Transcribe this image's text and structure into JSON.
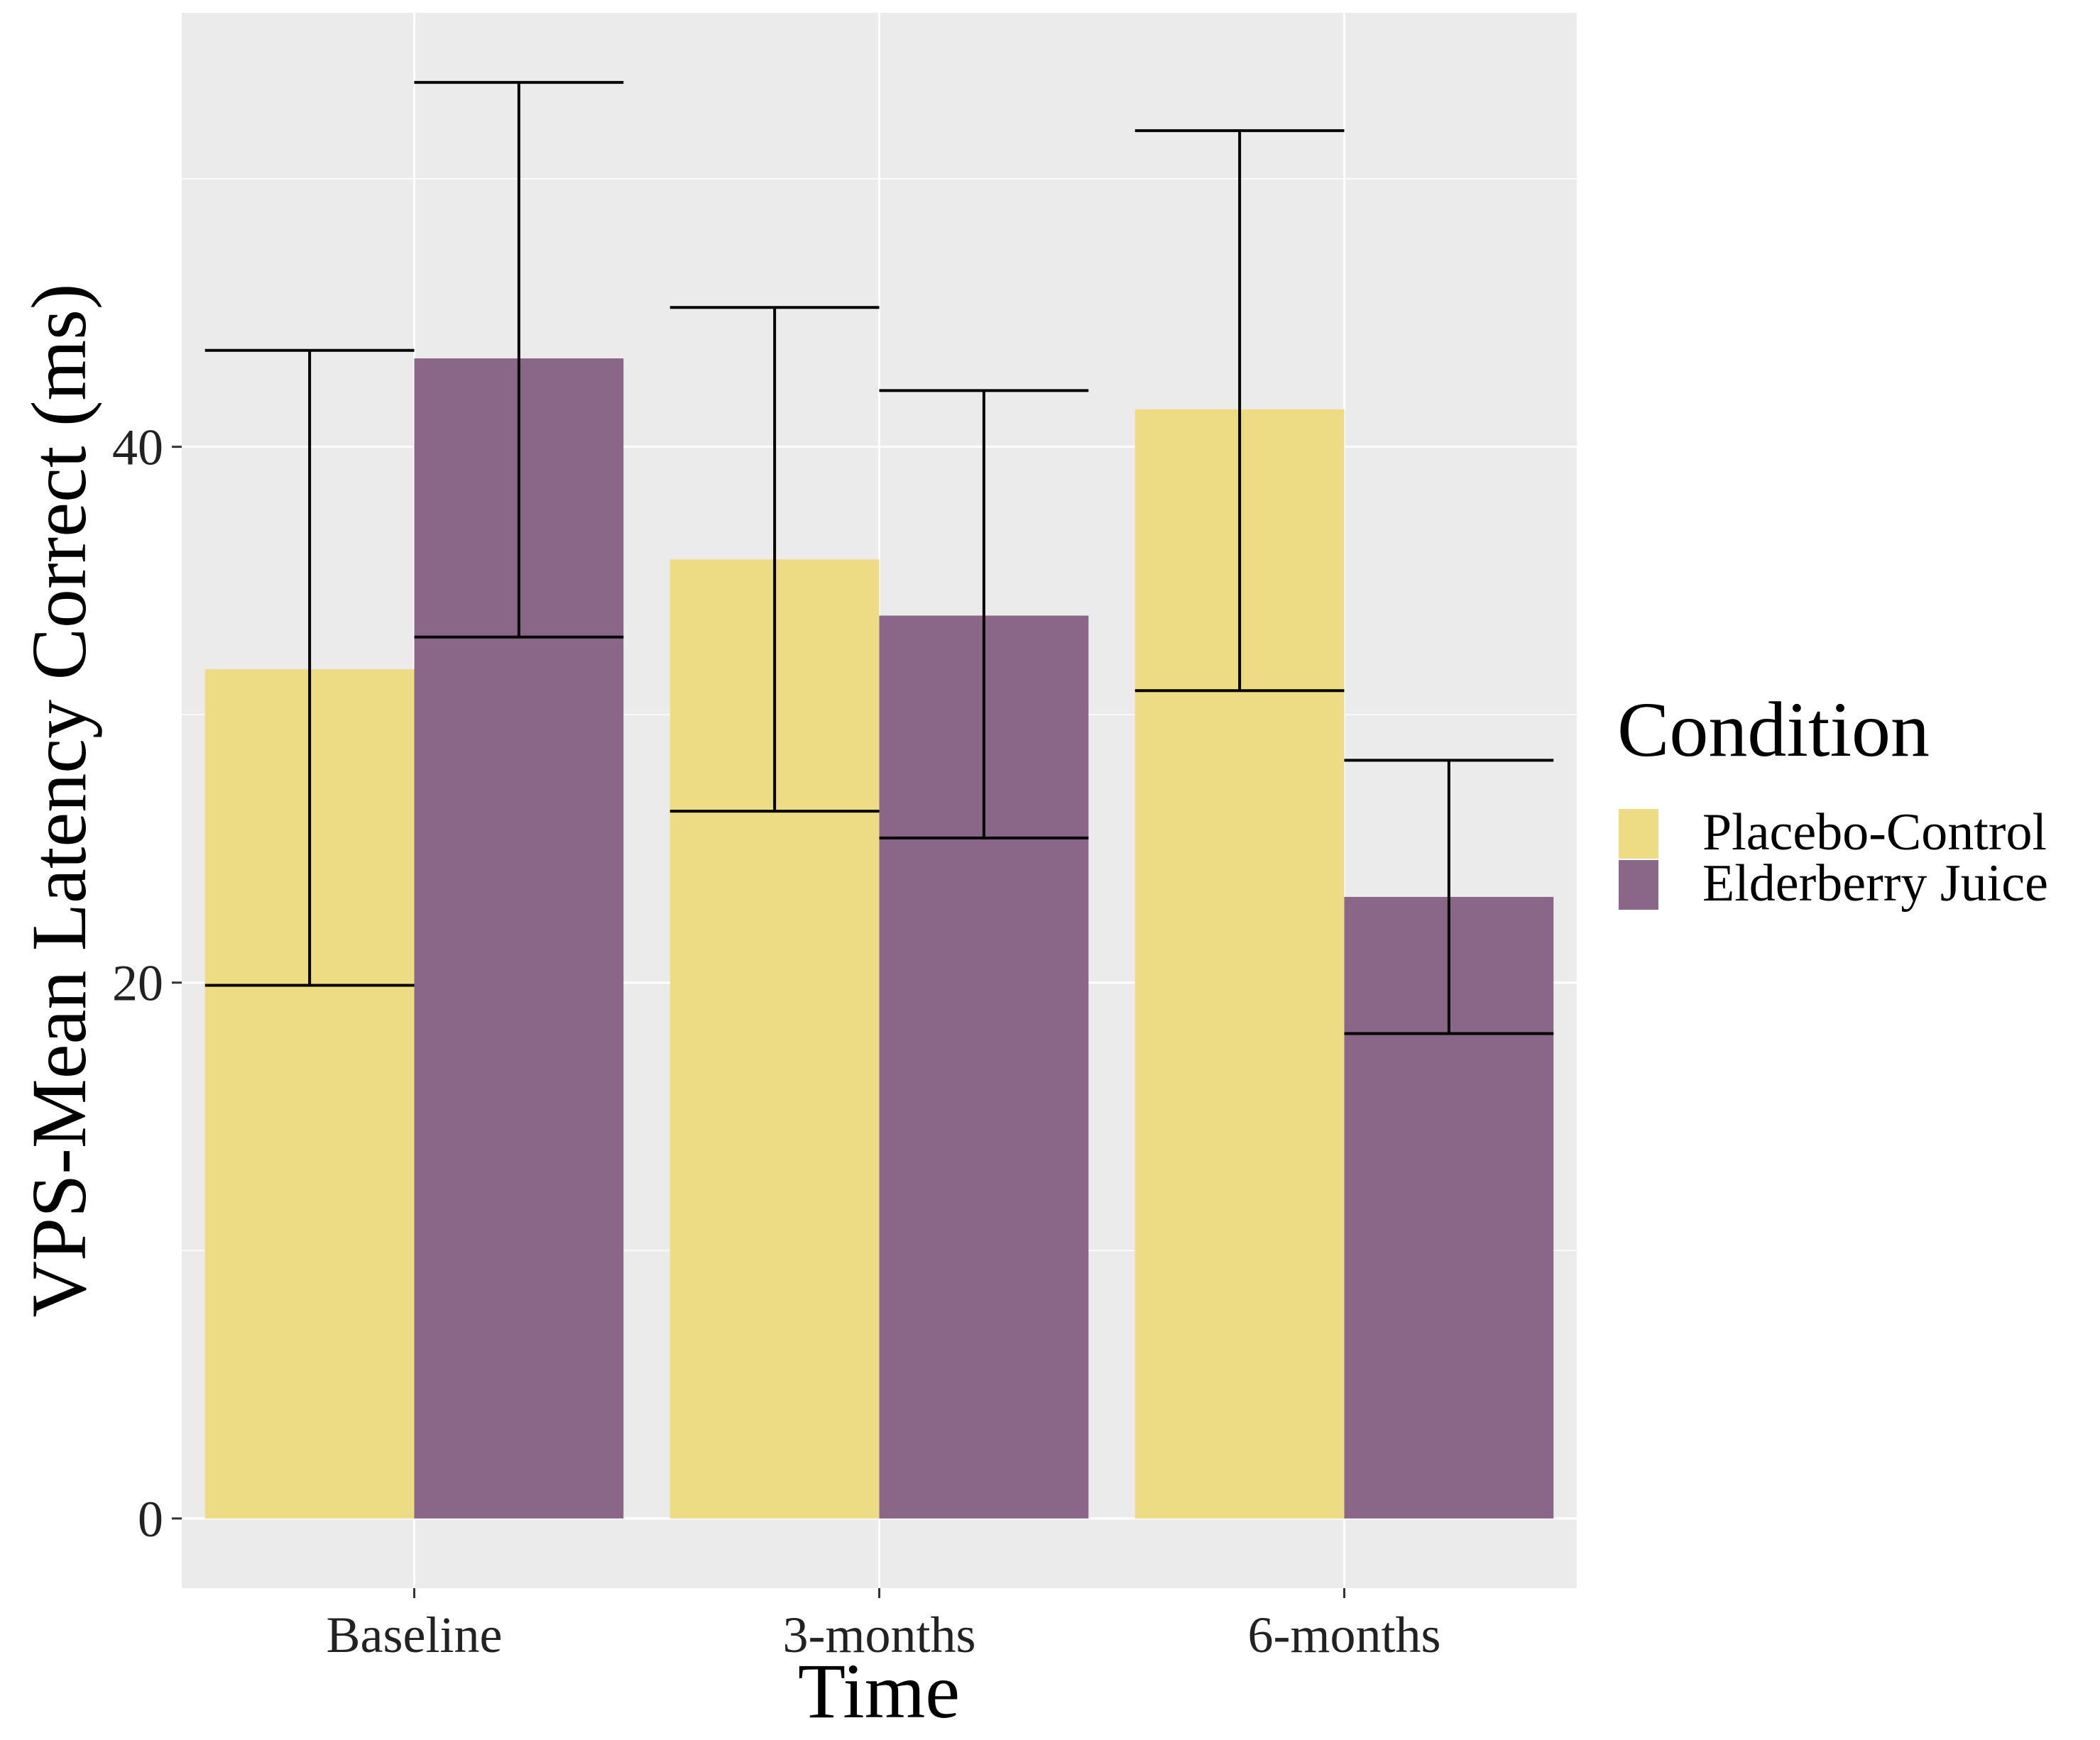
{
  "chart_data": {
    "type": "bar",
    "title": "",
    "xlabel": "Time",
    "ylabel": "VPS-Mean Latency Correct (ms)",
    "categories": [
      "Baseline",
      "3-months",
      "6-months"
    ],
    "ylim": [
      -2.6,
      56.2
    ],
    "y_ticks": [
      0,
      20,
      40
    ],
    "y_minor_ticks": [
      10,
      30,
      50
    ],
    "grid": true,
    "legend": {
      "title": "Condition",
      "position": "right"
    },
    "series": [
      {
        "name": "Placebo-Control",
        "color": "#EEDC84",
        "values": [
          31.7,
          35.8,
          41.4
        ],
        "error_low": [
          19.9,
          26.4,
          30.9
        ],
        "error_high": [
          43.6,
          45.2,
          51.8
        ]
      },
      {
        "name": "Elderberry Juice",
        "color": "#8A6788",
        "values": [
          43.3,
          33.7,
          23.2
        ],
        "error_low": [
          32.9,
          25.4,
          18.1
        ],
        "error_high": [
          53.6,
          42.1,
          28.3
        ]
      }
    ]
  },
  "colors": {
    "panel_background": "#EBEBEB",
    "grid_line": "#FFFFFF",
    "error_bar": "#000000"
  }
}
